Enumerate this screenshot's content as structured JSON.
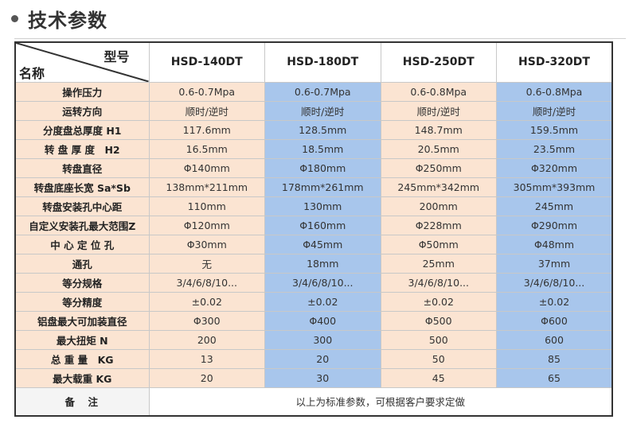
{
  "heading": {
    "title": "技术参数"
  },
  "table": {
    "corner_model": "型号",
    "corner_name": "名称",
    "models": [
      "HSD-140DT",
      "HSD-180DT",
      "HSD-250DT",
      "HSD-320DT"
    ],
    "rows": [
      {
        "label": "操作压力",
        "values": [
          "0.6-0.7Mpa",
          "0.6-0.7Mpa",
          "0.6-0.8Mpa",
          "0.6-0.8Mpa"
        ]
      },
      {
        "label": "运转方向",
        "values": [
          "顺时/逆时",
          "顺时/逆时",
          "顺时/逆时",
          "顺时/逆时"
        ]
      },
      {
        "label": "分度盘总厚度 H1",
        "values": [
          "117.6mm",
          "128.5mm",
          "148.7mm",
          "159.5mm"
        ]
      },
      {
        "label": "转 盘 厚 度　H2",
        "values": [
          "16.5mm",
          "18.5mm",
          "20.5mm",
          "23.5mm"
        ]
      },
      {
        "label": "转盘直径",
        "values": [
          "Φ140mm",
          "Φ180mm",
          "Φ250mm",
          "Φ320mm"
        ]
      },
      {
        "label": "转盘底座长宽 Sa*Sb",
        "values": [
          "138mm*211mm",
          "178mm*261mm",
          "245mm*342mm",
          "305mm*393mm"
        ]
      },
      {
        "label": "转盘安装孔中心距",
        "values": [
          "110mm",
          "130mm",
          "200mm",
          "245mm"
        ]
      },
      {
        "label": "自定义安装孔最大范围Z",
        "values": [
          "Φ120mm",
          "Φ160mm",
          "Φ228mm",
          "Φ290mm"
        ]
      },
      {
        "label": "中 心 定 位 孔",
        "values": [
          "Φ30mm",
          "Φ45mm",
          "Φ50mm",
          "Φ48mm"
        ]
      },
      {
        "label": "通孔",
        "values": [
          "无",
          "18mm",
          "25mm",
          "37mm"
        ]
      },
      {
        "label": "等分规格",
        "values": [
          "3/4/6/8/10...",
          "3/4/6/8/10...",
          "3/4/6/8/10...",
          "3/4/6/8/10..."
        ]
      },
      {
        "label": "等分精度",
        "values": [
          "±0.02",
          "±0.02",
          "±0.02",
          "±0.02"
        ]
      },
      {
        "label": "铝盘最大可加装直径",
        "values": [
          "Φ300",
          "Φ400",
          "Φ500",
          "Φ600"
        ]
      },
      {
        "label": "最大扭矩 N",
        "values": [
          "200",
          "300",
          "500",
          "600"
        ]
      },
      {
        "label": "总 重 量　KG",
        "values": [
          "13",
          "20",
          "50",
          "85"
        ]
      },
      {
        "label": "最大载重 KG",
        "values": [
          "20",
          "30",
          "45",
          "65"
        ]
      }
    ],
    "note_label": "备　注",
    "note_text": "以上为标准参数，可根据客户要求定做"
  },
  "colors": {
    "label_bg": "#fbe4d2",
    "col_peach": "#fbe4d2",
    "col_blue": "#a8c6ec",
    "border_dark": "#333333"
  }
}
